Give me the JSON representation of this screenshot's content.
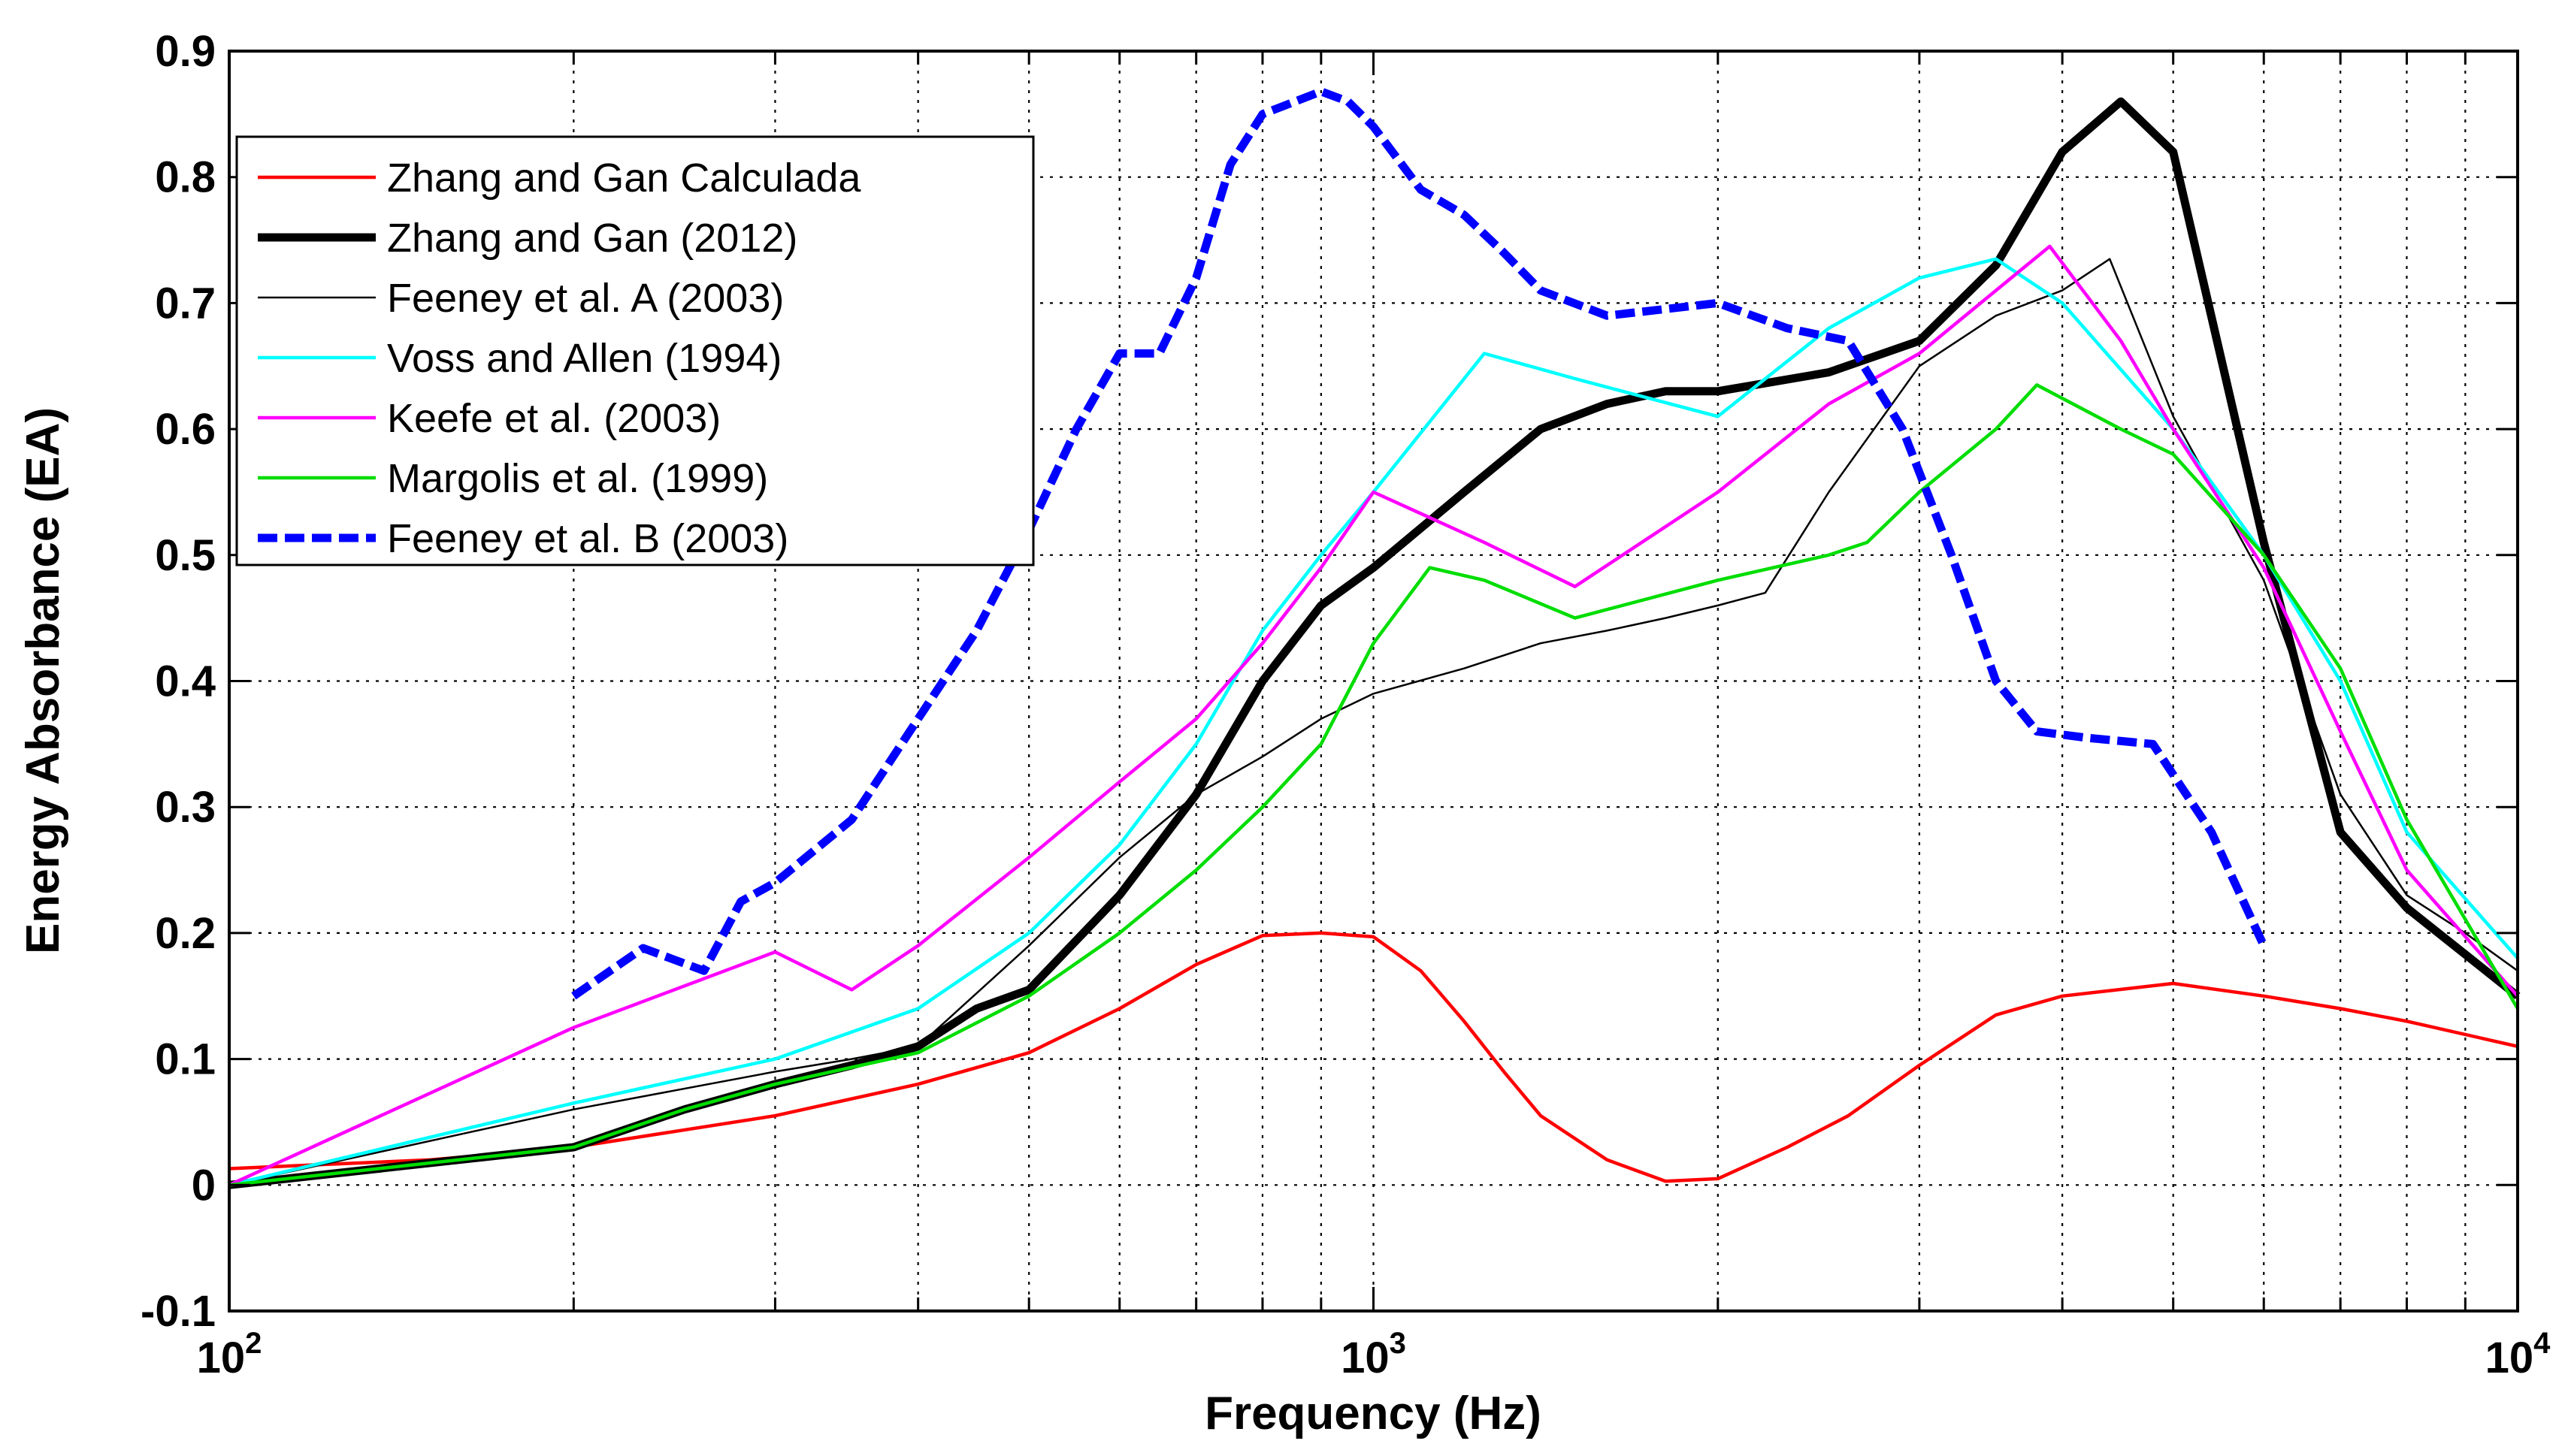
{
  "chart_data": {
    "type": "line",
    "title": "",
    "xlabel": "Frequency (Hz)",
    "ylabel": "Energy Absorbance (EA)",
    "xscale": "log",
    "xlim": [
      100,
      10000
    ],
    "ylim": [
      -0.1,
      0.9
    ],
    "grid": true,
    "legend_position": "top-left",
    "x_ticks": [
      {
        "value": 100,
        "base": "10",
        "exp": "2"
      },
      {
        "value": 1000,
        "base": "10",
        "exp": "3"
      },
      {
        "value": 10000,
        "base": "10",
        "exp": "4"
      }
    ],
    "y_ticks": [
      "0.9",
      "0.8",
      "0.7",
      "0.6",
      "0.5",
      "0.4",
      "0.3",
      "0.2",
      "0.1",
      "0",
      "-0.1"
    ],
    "series": [
      {
        "name": "Zhang and Gan Calculada",
        "color": "#ff0000",
        "style": "solid",
        "weight": "medium",
        "points": [
          [
            100,
            0.013
          ],
          [
            150,
            0.02
          ],
          [
            200,
            0.03
          ],
          [
            300,
            0.055
          ],
          [
            400,
            0.08
          ],
          [
            500,
            0.105
          ],
          [
            600,
            0.14
          ],
          [
            700,
            0.175
          ],
          [
            800,
            0.198
          ],
          [
            900,
            0.2
          ],
          [
            1000,
            0.197
          ],
          [
            1100,
            0.17
          ],
          [
            1200,
            0.13
          ],
          [
            1300,
            0.09
          ],
          [
            1400,
            0.055
          ],
          [
            1600,
            0.02
          ],
          [
            1800,
            0.003
          ],
          [
            2000,
            0.005
          ],
          [
            2300,
            0.03
          ],
          [
            2600,
            0.055
          ],
          [
            3000,
            0.095
          ],
          [
            3500,
            0.135
          ],
          [
            4000,
            0.15
          ],
          [
            5000,
            0.16
          ],
          [
            6000,
            0.15
          ],
          [
            7000,
            0.14
          ],
          [
            8000,
            0.13
          ],
          [
            10000,
            0.11
          ]
        ]
      },
      {
        "name": "Zhang and Gan (2012)",
        "color": "#000000",
        "style": "solid",
        "weight": "thick",
        "points": [
          [
            100,
            0.0
          ],
          [
            200,
            0.03
          ],
          [
            250,
            0.06
          ],
          [
            300,
            0.08
          ],
          [
            350,
            0.095
          ],
          [
            400,
            0.11
          ],
          [
            450,
            0.14
          ],
          [
            500,
            0.155
          ],
          [
            600,
            0.23
          ],
          [
            700,
            0.31
          ],
          [
            800,
            0.4
          ],
          [
            900,
            0.46
          ],
          [
            1000,
            0.49
          ],
          [
            1200,
            0.55
          ],
          [
            1400,
            0.6
          ],
          [
            1600,
            0.62
          ],
          [
            1800,
            0.63
          ],
          [
            2000,
            0.63
          ],
          [
            2500,
            0.645
          ],
          [
            3000,
            0.67
          ],
          [
            3500,
            0.73
          ],
          [
            4000,
            0.82
          ],
          [
            4500,
            0.86
          ],
          [
            5000,
            0.82
          ],
          [
            6000,
            0.51
          ],
          [
            7000,
            0.28
          ],
          [
            8000,
            0.22
          ],
          [
            10000,
            0.15
          ]
        ]
      },
      {
        "name": "Feeney et al. A (2003)",
        "color": "#000000",
        "style": "solid",
        "weight": "thin",
        "points": [
          [
            100,
            0.0
          ],
          [
            200,
            0.06
          ],
          [
            300,
            0.09
          ],
          [
            350,
            0.1
          ],
          [
            400,
            0.11
          ],
          [
            500,
            0.19
          ],
          [
            600,
            0.26
          ],
          [
            700,
            0.31
          ],
          [
            800,
            0.34
          ],
          [
            900,
            0.37
          ],
          [
            1000,
            0.39
          ],
          [
            1200,
            0.41
          ],
          [
            1400,
            0.43
          ],
          [
            1600,
            0.44
          ],
          [
            1800,
            0.45
          ],
          [
            2000,
            0.46
          ],
          [
            2200,
            0.47
          ],
          [
            2500,
            0.55
          ],
          [
            3000,
            0.65
          ],
          [
            3500,
            0.69
          ],
          [
            4000,
            0.71
          ],
          [
            4400,
            0.735
          ],
          [
            5000,
            0.61
          ],
          [
            6000,
            0.48
          ],
          [
            7000,
            0.31
          ],
          [
            8000,
            0.23
          ],
          [
            9000,
            0.2
          ],
          [
            10000,
            0.17
          ]
        ]
      },
      {
        "name": "Voss and Allen (1994)",
        "color": "#00ffff",
        "style": "solid",
        "weight": "medium",
        "points": [
          [
            100,
            0.0
          ],
          [
            200,
            0.065
          ],
          [
            300,
            0.1
          ],
          [
            400,
            0.14
          ],
          [
            500,
            0.2
          ],
          [
            600,
            0.27
          ],
          [
            700,
            0.35
          ],
          [
            800,
            0.44
          ],
          [
            900,
            0.5
          ],
          [
            1000,
            0.55
          ],
          [
            1250,
            0.66
          ],
          [
            1500,
            0.64
          ],
          [
            2000,
            0.61
          ],
          [
            2500,
            0.68
          ],
          [
            3000,
            0.72
          ],
          [
            3500,
            0.735
          ],
          [
            4000,
            0.7
          ],
          [
            5000,
            0.6
          ],
          [
            6000,
            0.5
          ],
          [
            7000,
            0.4
          ],
          [
            8000,
            0.28
          ],
          [
            10000,
            0.18
          ]
        ]
      },
      {
        "name": "Keefe et al. (2003)",
        "color": "#ff00ff",
        "style": "solid",
        "weight": "medium",
        "points": [
          [
            100,
            0.0
          ],
          [
            200,
            0.125
          ],
          [
            300,
            0.185
          ],
          [
            350,
            0.155
          ],
          [
            400,
            0.19
          ],
          [
            500,
            0.26
          ],
          [
            600,
            0.32
          ],
          [
            700,
            0.37
          ],
          [
            800,
            0.43
          ],
          [
            900,
            0.49
          ],
          [
            1000,
            0.55
          ],
          [
            1250,
            0.51
          ],
          [
            1500,
            0.475
          ],
          [
            2000,
            0.55
          ],
          [
            2500,
            0.62
          ],
          [
            3000,
            0.66
          ],
          [
            3500,
            0.71
          ],
          [
            3900,
            0.745
          ],
          [
            4500,
            0.67
          ],
          [
            5000,
            0.6
          ],
          [
            6000,
            0.49
          ],
          [
            7000,
            0.36
          ],
          [
            8000,
            0.25
          ],
          [
            10000,
            0.15
          ]
        ]
      },
      {
        "name": "Margolis et al. (1999)",
        "color": "#00dd00",
        "style": "solid",
        "weight": "medium",
        "points": [
          [
            100,
            0.0
          ],
          [
            200,
            0.03
          ],
          [
            250,
            0.06
          ],
          [
            300,
            0.08
          ],
          [
            400,
            0.105
          ],
          [
            500,
            0.15
          ],
          [
            600,
            0.2
          ],
          [
            700,
            0.25
          ],
          [
            800,
            0.3
          ],
          [
            900,
            0.35
          ],
          [
            1000,
            0.43
          ],
          [
            1120,
            0.49
          ],
          [
            1250,
            0.48
          ],
          [
            1500,
            0.45
          ],
          [
            2000,
            0.48
          ],
          [
            2500,
            0.5
          ],
          [
            2700,
            0.51
          ],
          [
            3000,
            0.55
          ],
          [
            3500,
            0.6
          ],
          [
            3800,
            0.635
          ],
          [
            4500,
            0.6
          ],
          [
            5000,
            0.58
          ],
          [
            6000,
            0.5
          ],
          [
            7000,
            0.41
          ],
          [
            8000,
            0.29
          ],
          [
            10000,
            0.14
          ]
        ]
      },
      {
        "name": "Feeney et al. B (2003)",
        "color": "#0000ff",
        "style": "dashed",
        "weight": "thick",
        "points": [
          [
            200,
            0.15
          ],
          [
            230,
            0.188
          ],
          [
            260,
            0.17
          ],
          [
            280,
            0.225
          ],
          [
            300,
            0.24
          ],
          [
            350,
            0.29
          ],
          [
            400,
            0.37
          ],
          [
            450,
            0.44
          ],
          [
            500,
            0.52
          ],
          [
            550,
            0.6
          ],
          [
            600,
            0.66
          ],
          [
            650,
            0.66
          ],
          [
            700,
            0.72
          ],
          [
            750,
            0.81
          ],
          [
            800,
            0.85
          ],
          [
            900,
            0.868
          ],
          [
            950,
            0.86
          ],
          [
            1000,
            0.84
          ],
          [
            1100,
            0.79
          ],
          [
            1200,
            0.77
          ],
          [
            1300,
            0.74
          ],
          [
            1400,
            0.71
          ],
          [
            1600,
            0.69
          ],
          [
            2000,
            0.7
          ],
          [
            2300,
            0.68
          ],
          [
            2600,
            0.67
          ],
          [
            2900,
            0.6
          ],
          [
            3200,
            0.5
          ],
          [
            3500,
            0.4
          ],
          [
            3800,
            0.36
          ],
          [
            4200,
            0.355
          ],
          [
            4800,
            0.35
          ],
          [
            5400,
            0.28
          ],
          [
            6000,
            0.19
          ]
        ]
      }
    ]
  }
}
